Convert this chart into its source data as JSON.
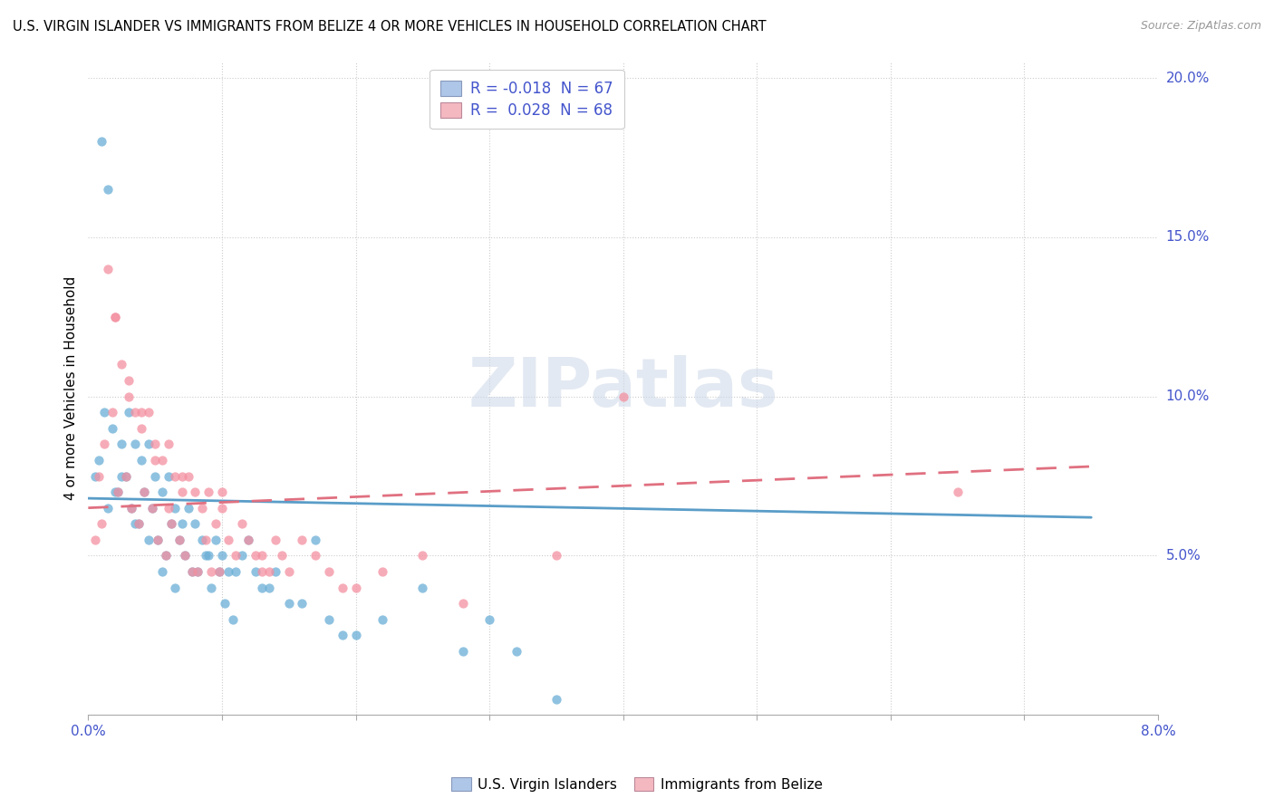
{
  "title": "U.S. VIRGIN ISLANDER VS IMMIGRANTS FROM BELIZE 4 OR MORE VEHICLES IN HOUSEHOLD CORRELATION CHART",
  "source": "Source: ZipAtlas.com",
  "ylabel_label": "4 or more Vehicles in Household",
  "legend1_label": "R = -0.018  N = 67",
  "legend2_label": "R =  0.028  N = 68",
  "legend1_color": "#aec6e8",
  "legend2_color": "#f4b8c1",
  "blue_color": "#6aaed6",
  "pink_color": "#f490a0",
  "trendline_blue": "#5a9dc8",
  "trendline_pink": "#e07080",
  "watermark": "ZIPatlas",
  "xlim": [
    0.0,
    8.0
  ],
  "ylim": [
    0.0,
    20.5
  ],
  "blue_x": [
    0.05,
    0.08,
    0.1,
    0.12,
    0.15,
    0.18,
    0.2,
    0.22,
    0.25,
    0.28,
    0.3,
    0.32,
    0.35,
    0.38,
    0.4,
    0.42,
    0.45,
    0.48,
    0.5,
    0.52,
    0.55,
    0.58,
    0.6,
    0.62,
    0.65,
    0.68,
    0.7,
    0.72,
    0.75,
    0.78,
    0.8,
    0.82,
    0.85,
    0.88,
    0.9,
    0.92,
    0.95,
    0.98,
    1.0,
    1.02,
    1.05,
    1.08,
    1.1,
    1.15,
    1.2,
    1.25,
    1.3,
    1.35,
    1.4,
    1.5,
    1.6,
    1.7,
    1.8,
    1.9,
    2.0,
    2.2,
    2.5,
    2.8,
    3.0,
    3.2,
    3.5,
    0.15,
    0.25,
    0.35,
    0.45,
    0.55,
    0.65
  ],
  "blue_y": [
    7.5,
    8.0,
    18.0,
    9.5,
    16.5,
    9.0,
    7.0,
    7.0,
    8.5,
    7.5,
    9.5,
    6.5,
    8.5,
    6.0,
    8.0,
    7.0,
    8.5,
    6.5,
    7.5,
    5.5,
    7.0,
    5.0,
    7.5,
    6.0,
    6.5,
    5.5,
    6.0,
    5.0,
    6.5,
    4.5,
    6.0,
    4.5,
    5.5,
    5.0,
    5.0,
    4.0,
    5.5,
    4.5,
    5.0,
    3.5,
    4.5,
    3.0,
    4.5,
    5.0,
    5.5,
    4.5,
    4.0,
    4.0,
    4.5,
    3.5,
    3.5,
    5.5,
    3.0,
    2.5,
    2.5,
    3.0,
    4.0,
    2.0,
    3.0,
    2.0,
    0.5,
    6.5,
    7.5,
    6.0,
    5.5,
    4.5,
    4.0
  ],
  "pink_x": [
    0.05,
    0.08,
    0.1,
    0.12,
    0.15,
    0.18,
    0.2,
    0.22,
    0.25,
    0.28,
    0.3,
    0.32,
    0.35,
    0.38,
    0.4,
    0.42,
    0.45,
    0.48,
    0.5,
    0.52,
    0.55,
    0.58,
    0.6,
    0.62,
    0.65,
    0.68,
    0.7,
    0.72,
    0.75,
    0.78,
    0.8,
    0.82,
    0.85,
    0.88,
    0.9,
    0.92,
    0.95,
    0.98,
    1.0,
    1.05,
    1.1,
    1.15,
    1.2,
    1.25,
    1.3,
    1.35,
    1.4,
    1.45,
    1.5,
    1.6,
    1.7,
    1.8,
    1.9,
    2.0,
    2.2,
    2.5,
    2.8,
    3.5,
    4.0,
    6.5,
    0.2,
    0.3,
    0.4,
    0.5,
    0.6,
    0.7,
    1.0,
    1.3
  ],
  "pink_y": [
    5.5,
    7.5,
    6.0,
    8.5,
    14.0,
    9.5,
    12.5,
    7.0,
    11.0,
    7.5,
    10.5,
    6.5,
    9.5,
    6.0,
    9.0,
    7.0,
    9.5,
    6.5,
    8.5,
    5.5,
    8.0,
    5.0,
    8.5,
    6.0,
    7.5,
    5.5,
    7.0,
    5.0,
    7.5,
    4.5,
    7.0,
    4.5,
    6.5,
    5.5,
    7.0,
    4.5,
    6.0,
    4.5,
    6.5,
    5.5,
    5.0,
    6.0,
    5.5,
    5.0,
    4.5,
    4.5,
    5.5,
    5.0,
    4.5,
    5.5,
    5.0,
    4.5,
    4.0,
    4.0,
    4.5,
    5.0,
    3.5,
    5.0,
    10.0,
    7.0,
    12.5,
    10.0,
    9.5,
    8.0,
    6.5,
    7.5,
    7.0,
    5.0
  ],
  "blue_trend_x": [
    0.0,
    7.5
  ],
  "blue_trend_y": [
    6.8,
    6.2
  ],
  "pink_trend_x": [
    0.0,
    7.5
  ],
  "pink_trend_y": [
    6.5,
    7.8
  ]
}
